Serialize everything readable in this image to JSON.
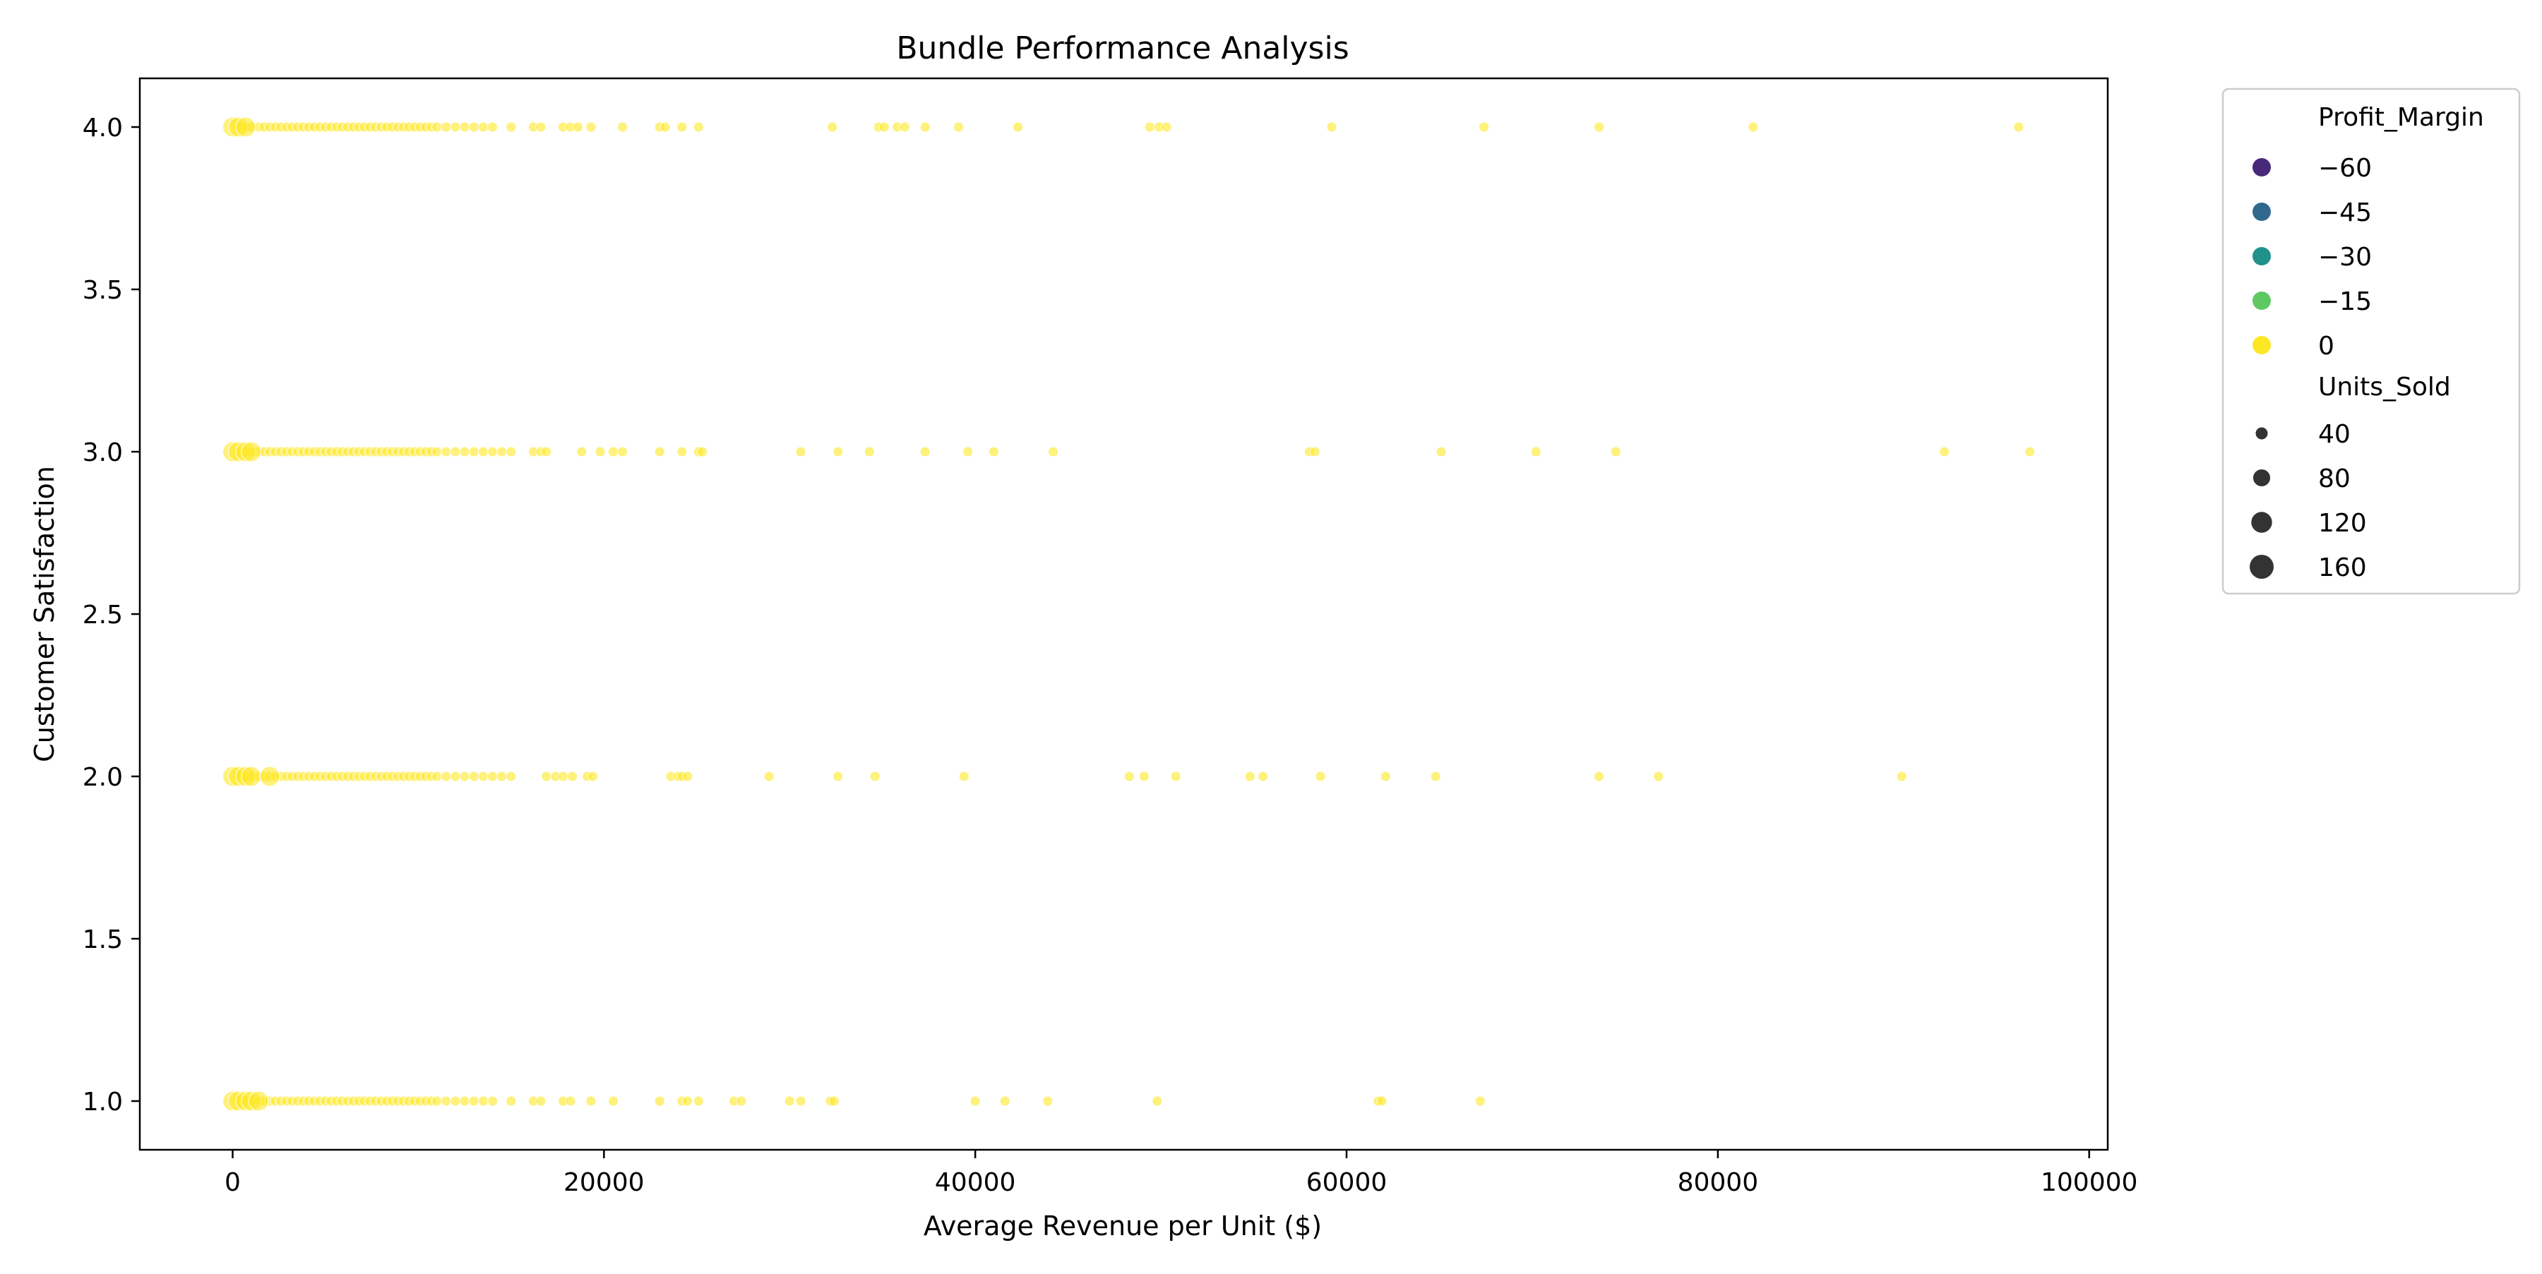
{
  "chart_data": {
    "type": "scatter",
    "title": "Bundle Performance Analysis",
    "xlabel": "Average Revenue per Unit ($)",
    "ylabel": "Customer Satisfaction",
    "xlim": [
      -5000,
      101000
    ],
    "ylim": [
      0.85,
      4.15
    ],
    "xticks": [
      0,
      20000,
      40000,
      60000,
      80000,
      100000
    ],
    "yticks": [
      1.0,
      1.5,
      2.0,
      2.5,
      3.0,
      3.5,
      4.0
    ],
    "xtick_labels": [
      "0",
      "20000",
      "40000",
      "60000",
      "80000",
      "100000"
    ],
    "ytick_labels": [
      "1.0",
      "1.5",
      "2.0",
      "2.5",
      "3.0",
      "3.5",
      "4.0"
    ],
    "grid": false,
    "legend_position": "outside-top-right",
    "point_color": "#fde725",
    "point_opacity": 0.6,
    "hue_legend": {
      "title": "Profit_Margin",
      "entries": [
        {
          "label": "−60",
          "color": "#482878"
        },
        {
          "label": "−45",
          "color": "#31688e"
        },
        {
          "label": "−30",
          "color": "#21918c"
        },
        {
          "label": "−15",
          "color": "#5ec962"
        },
        {
          "label": "0",
          "color": "#fde725"
        }
      ]
    },
    "size_legend": {
      "title": "Units_Sold",
      "color": "#333333",
      "entries": [
        {
          "label": "40",
          "value": 40
        },
        {
          "label": "80",
          "value": 80
        },
        {
          "label": "120",
          "value": 120
        },
        {
          "label": "160",
          "value": 160
        }
      ]
    },
    "series": [
      {
        "y": 4,
        "x_small": [
          300,
          700,
          1000,
          1400,
          1700,
          2000,
          2300,
          2600,
          2900,
          3200,
          3500,
          3800,
          4100,
          4400,
          4700,
          5000,
          5300,
          5600,
          5900,
          6200,
          6500,
          6800,
          7100,
          7400,
          7700,
          8000,
          8300,
          8600,
          8900,
          9200,
          9500,
          9800,
          10100,
          10400,
          10700,
          11000,
          11500,
          12000,
          12500,
          13000,
          13500,
          14000,
          15000,
          16200,
          16600,
          17800,
          18200,
          18600,
          19300,
          21000,
          23000,
          23300,
          24200,
          25100,
          32300,
          34800,
          35100,
          35800,
          36200,
          37300,
          39100,
          42300,
          49400,
          49900,
          50300,
          59200,
          67400,
          73600,
          81900,
          96200
        ],
        "x_large": [
          0,
          300,
          700
        ]
      },
      {
        "y": 3,
        "x_small": [
          300,
          700,
          1000,
          1400,
          1700,
          2000,
          2300,
          2600,
          2900,
          3200,
          3500,
          3800,
          4100,
          4400,
          4700,
          5000,
          5300,
          5600,
          5900,
          6200,
          6500,
          6800,
          7100,
          7400,
          7700,
          8000,
          8300,
          8600,
          8900,
          9200,
          9500,
          9800,
          10100,
          10400,
          10700,
          11000,
          11500,
          12000,
          12500,
          13000,
          13500,
          14000,
          14500,
          15000,
          16200,
          16600,
          16900,
          18800,
          19800,
          20500,
          21000,
          23000,
          24200,
          25100,
          25300,
          30600,
          32600,
          34300,
          37300,
          39600,
          41000,
          44200,
          58000,
          58300,
          65100,
          70200,
          74500,
          92200,
          96800
        ],
        "x_large": [
          0,
          300,
          700,
          1000
        ]
      },
      {
        "y": 2,
        "x_small": [
          300,
          700,
          1000,
          1400,
          1700,
          2000,
          2300,
          2600,
          2900,
          3200,
          3500,
          3800,
          4100,
          4400,
          4700,
          5000,
          5300,
          5600,
          5900,
          6200,
          6500,
          6800,
          7100,
          7400,
          7700,
          8000,
          8300,
          8600,
          8900,
          9200,
          9500,
          9800,
          10100,
          10400,
          10700,
          11000,
          11500,
          12000,
          12500,
          13000,
          13500,
          14000,
          14500,
          15000,
          16900,
          17400,
          17800,
          18300,
          19100,
          19400,
          23600,
          24000,
          24200,
          24500,
          28900,
          32600,
          34600,
          39400,
          48300,
          49100,
          50800,
          54800,
          55500,
          58600,
          62100,
          64800,
          73600,
          76800,
          89900
        ],
        "x_large": [
          0,
          300,
          700,
          1000,
          2000
        ]
      },
      {
        "y": 1,
        "x_small": [
          300,
          700,
          1000,
          1400,
          1700,
          2000,
          2300,
          2600,
          2900,
          3200,
          3500,
          3800,
          4100,
          4400,
          4700,
          5000,
          5300,
          5600,
          5900,
          6200,
          6500,
          6800,
          7100,
          7400,
          7700,
          8000,
          8300,
          8600,
          8900,
          9200,
          9500,
          9800,
          10100,
          10400,
          10700,
          11000,
          11500,
          12000,
          12500,
          13000,
          13500,
          14000,
          15000,
          16200,
          16600,
          17800,
          18200,
          19300,
          20500,
          23000,
          24200,
          24500,
          25100,
          27000,
          27400,
          30000,
          30600,
          32200,
          32400,
          40000,
          41600,
          43900,
          49800,
          61700,
          61900,
          67200
        ],
        "x_large": [
          0,
          300,
          700,
          1000,
          1400
        ]
      }
    ]
  }
}
